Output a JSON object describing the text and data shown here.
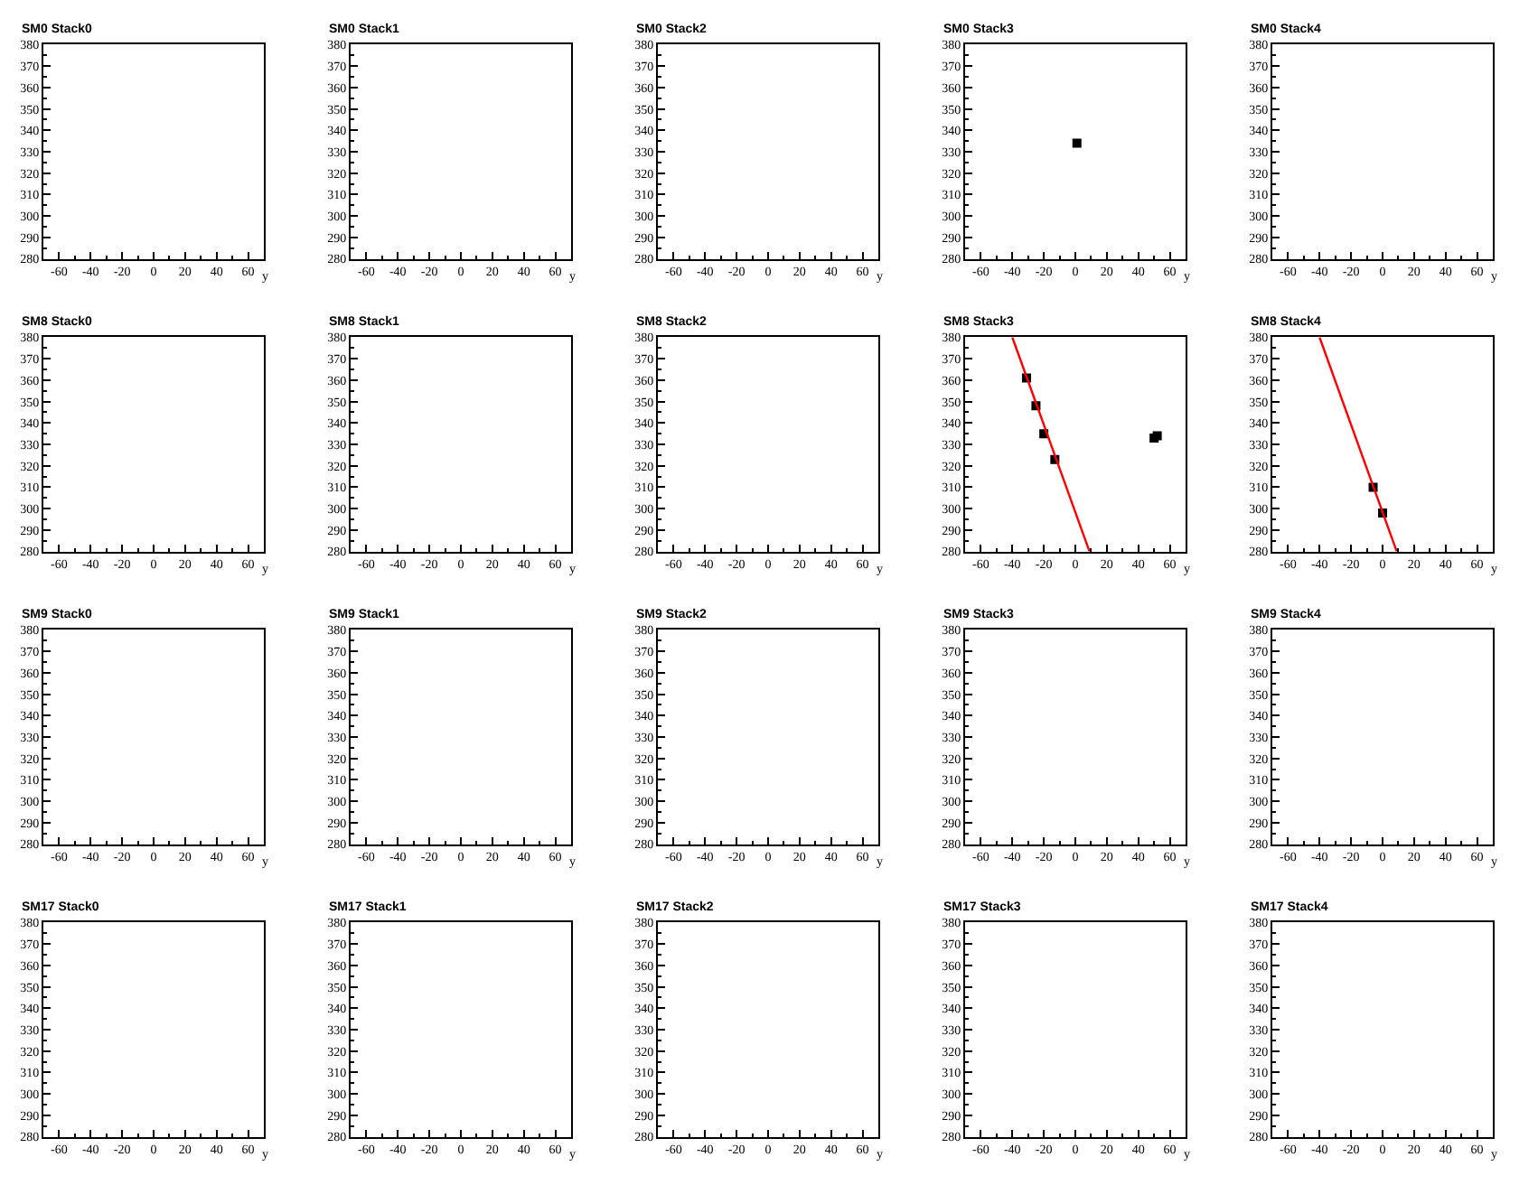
{
  "chart_data": [
    {
      "type": "scatter",
      "title": "SM0 Stack0",
      "xlabel": "y",
      "xlim": [
        -70,
        70
      ],
      "xticks": [
        -60,
        -40,
        -20,
        0,
        20,
        40,
        60
      ],
      "ylim": [
        280,
        380
      ],
      "yticks": [
        280,
        290,
        300,
        310,
        320,
        330,
        340,
        350,
        360,
        370,
        380
      ],
      "grid": false
    },
    {
      "type": "scatter",
      "title": "SM0 Stack1",
      "xlabel": "y",
      "xlim": [
        -70,
        70
      ],
      "xticks": [
        -60,
        -40,
        -20,
        0,
        20,
        40,
        60
      ],
      "ylim": [
        280,
        380
      ],
      "yticks": [
        280,
        290,
        300,
        310,
        320,
        330,
        340,
        350,
        360,
        370,
        380
      ],
      "grid": false
    },
    {
      "type": "scatter",
      "title": "SM0 Stack2",
      "xlabel": "y",
      "xlim": [
        -70,
        70
      ],
      "xticks": [
        -60,
        -40,
        -20,
        0,
        20,
        40,
        60
      ],
      "ylim": [
        280,
        380
      ],
      "yticks": [
        280,
        290,
        300,
        310,
        320,
        330,
        340,
        350,
        360,
        370,
        380
      ],
      "grid": false
    },
    {
      "type": "scatter",
      "title": "SM0 Stack3",
      "xlabel": "y",
      "xlim": [
        -70,
        70
      ],
      "xticks": [
        -60,
        -40,
        -20,
        0,
        20,
        40,
        60
      ],
      "ylim": [
        280,
        380
      ],
      "yticks": [
        280,
        290,
        300,
        310,
        320,
        330,
        340,
        350,
        360,
        370,
        380
      ],
      "marker": "square",
      "grid": false,
      "series": [
        {
          "color": "#000000",
          "x": [
            1
          ],
          "values": [
            334
          ]
        }
      ]
    },
    {
      "type": "scatter",
      "title": "SM0 Stack4",
      "xlabel": "y",
      "xlim": [
        -70,
        70
      ],
      "xticks": [
        -60,
        -40,
        -20,
        0,
        20,
        40,
        60
      ],
      "ylim": [
        280,
        380
      ],
      "yticks": [
        280,
        290,
        300,
        310,
        320,
        330,
        340,
        350,
        360,
        370,
        380
      ],
      "grid": false
    },
    {
      "type": "scatter",
      "title": "SM8 Stack0",
      "xlabel": "y",
      "xlim": [
        -70,
        70
      ],
      "xticks": [
        -60,
        -40,
        -20,
        0,
        20,
        40,
        60
      ],
      "ylim": [
        280,
        380
      ],
      "yticks": [
        280,
        290,
        300,
        310,
        320,
        330,
        340,
        350,
        360,
        370,
        380
      ],
      "grid": false
    },
    {
      "type": "scatter",
      "title": "SM8 Stack1",
      "xlabel": "y",
      "xlim": [
        -70,
        70
      ],
      "xticks": [
        -60,
        -40,
        -20,
        0,
        20,
        40,
        60
      ],
      "ylim": [
        280,
        380
      ],
      "yticks": [
        280,
        290,
        300,
        310,
        320,
        330,
        340,
        350,
        360,
        370,
        380
      ],
      "grid": false
    },
    {
      "type": "scatter",
      "title": "SM8 Stack2",
      "xlabel": "y",
      "xlim": [
        -70,
        70
      ],
      "xticks": [
        -60,
        -40,
        -20,
        0,
        20,
        40,
        60
      ],
      "ylim": [
        280,
        380
      ],
      "yticks": [
        280,
        290,
        300,
        310,
        320,
        330,
        340,
        350,
        360,
        370,
        380
      ],
      "grid": false
    },
    {
      "type": "scatter",
      "title": "SM8 Stack3",
      "xlabel": "y",
      "xlim": [
        -70,
        70
      ],
      "xticks": [
        -60,
        -40,
        -20,
        0,
        20,
        40,
        60
      ],
      "ylim": [
        280,
        380
      ],
      "yticks": [
        280,
        290,
        300,
        310,
        320,
        330,
        340,
        350,
        360,
        370,
        380
      ],
      "grid": false,
      "series": [
        {
          "color": "#000000",
          "marker": "square",
          "x": [
            -31,
            -25,
            -20,
            -13,
            50,
            52
          ],
          "values": [
            361,
            348,
            335,
            323,
            333,
            334
          ]
        },
        {
          "type": "line",
          "color": "#ff0000",
          "x": [
            -40,
            9
          ],
          "values": [
            380,
            280
          ]
        }
      ]
    },
    {
      "type": "scatter",
      "title": "SM8 Stack4",
      "xlabel": "y",
      "xlim": [
        -70,
        70
      ],
      "xticks": [
        -60,
        -40,
        -20,
        0,
        20,
        40,
        60
      ],
      "ylim": [
        280,
        380
      ],
      "yticks": [
        280,
        290,
        300,
        310,
        320,
        330,
        340,
        350,
        360,
        370,
        380
      ],
      "grid": false,
      "series": [
        {
          "color": "#000000",
          "marker": "square",
          "x": [
            -6,
            0
          ],
          "values": [
            310,
            298
          ]
        },
        {
          "type": "line",
          "color": "#ff0000",
          "x": [
            -40,
            9
          ],
          "values": [
            380,
            280
          ]
        }
      ]
    },
    {
      "type": "scatter",
      "title": "SM9 Stack0",
      "xlabel": "y",
      "xlim": [
        -70,
        70
      ],
      "xticks": [
        -60,
        -40,
        -20,
        0,
        20,
        40,
        60
      ],
      "ylim": [
        280,
        380
      ],
      "yticks": [
        280,
        290,
        300,
        310,
        320,
        330,
        340,
        350,
        360,
        370,
        380
      ],
      "grid": false
    },
    {
      "type": "scatter",
      "title": "SM9 Stack1",
      "xlabel": "y",
      "xlim": [
        -70,
        70
      ],
      "xticks": [
        -60,
        -40,
        -20,
        0,
        20,
        40,
        60
      ],
      "ylim": [
        280,
        380
      ],
      "yticks": [
        280,
        290,
        300,
        310,
        320,
        330,
        340,
        350,
        360,
        370,
        380
      ],
      "grid": false
    },
    {
      "type": "scatter",
      "title": "SM9 Stack2",
      "xlabel": "y",
      "xlim": [
        -70,
        70
      ],
      "xticks": [
        -60,
        -40,
        -20,
        0,
        20,
        40,
        60
      ],
      "ylim": [
        280,
        380
      ],
      "yticks": [
        280,
        290,
        300,
        310,
        320,
        330,
        340,
        350,
        360,
        370,
        380
      ],
      "grid": false
    },
    {
      "type": "scatter",
      "title": "SM9 Stack3",
      "xlabel": "y",
      "xlim": [
        -70,
        70
      ],
      "xticks": [
        -60,
        -40,
        -20,
        0,
        20,
        40,
        60
      ],
      "ylim": [
        280,
        380
      ],
      "yticks": [
        280,
        290,
        300,
        310,
        320,
        330,
        340,
        350,
        360,
        370,
        380
      ],
      "grid": false
    },
    {
      "type": "scatter",
      "title": "SM9 Stack4",
      "xlabel": "y",
      "xlim": [
        -70,
        70
      ],
      "xticks": [
        -60,
        -40,
        -20,
        0,
        20,
        40,
        60
      ],
      "ylim": [
        280,
        380
      ],
      "yticks": [
        280,
        290,
        300,
        310,
        320,
        330,
        340,
        350,
        360,
        370,
        380
      ],
      "grid": false
    },
    {
      "type": "scatter",
      "title": "SM17 Stack0",
      "xlabel": "y",
      "xlim": [
        -70,
        70
      ],
      "xticks": [
        -60,
        -40,
        -20,
        0,
        20,
        40,
        60
      ],
      "ylim": [
        280,
        380
      ],
      "yticks": [
        280,
        290,
        300,
        310,
        320,
        330,
        340,
        350,
        360,
        370,
        380
      ],
      "grid": false
    },
    {
      "type": "scatter",
      "title": "SM17 Stack1",
      "xlabel": "y",
      "xlim": [
        -70,
        70
      ],
      "xticks": [
        -60,
        -40,
        -20,
        0,
        20,
        40,
        60
      ],
      "ylim": [
        280,
        380
      ],
      "yticks": [
        280,
        290,
        300,
        310,
        320,
        330,
        340,
        350,
        360,
        370,
        380
      ],
      "grid": false
    },
    {
      "type": "scatter",
      "title": "SM17 Stack2",
      "xlabel": "y",
      "xlim": [
        -70,
        70
      ],
      "xticks": [
        -60,
        -40,
        -20,
        0,
        20,
        40,
        60
      ],
      "ylim": [
        280,
        380
      ],
      "yticks": [
        280,
        290,
        300,
        310,
        320,
        330,
        340,
        350,
        360,
        370,
        380
      ],
      "grid": false
    },
    {
      "type": "scatter",
      "title": "SM17 Stack3",
      "xlabel": "y",
      "xlim": [
        -70,
        70
      ],
      "xticks": [
        -60,
        -40,
        -20,
        0,
        20,
        40,
        60
      ],
      "ylim": [
        280,
        380
      ],
      "yticks": [
        280,
        290,
        300,
        310,
        320,
        330,
        340,
        350,
        360,
        370,
        380
      ],
      "grid": false
    },
    {
      "type": "scatter",
      "title": "SM17 Stack4",
      "xlabel": "y",
      "xlim": [
        -70,
        70
      ],
      "xticks": [
        -60,
        -40,
        -20,
        0,
        20,
        40,
        60
      ],
      "ylim": [
        280,
        380
      ],
      "yticks": [
        280,
        290,
        300,
        310,
        320,
        330,
        340,
        350,
        360,
        370,
        380
      ],
      "grid": false
    }
  ]
}
